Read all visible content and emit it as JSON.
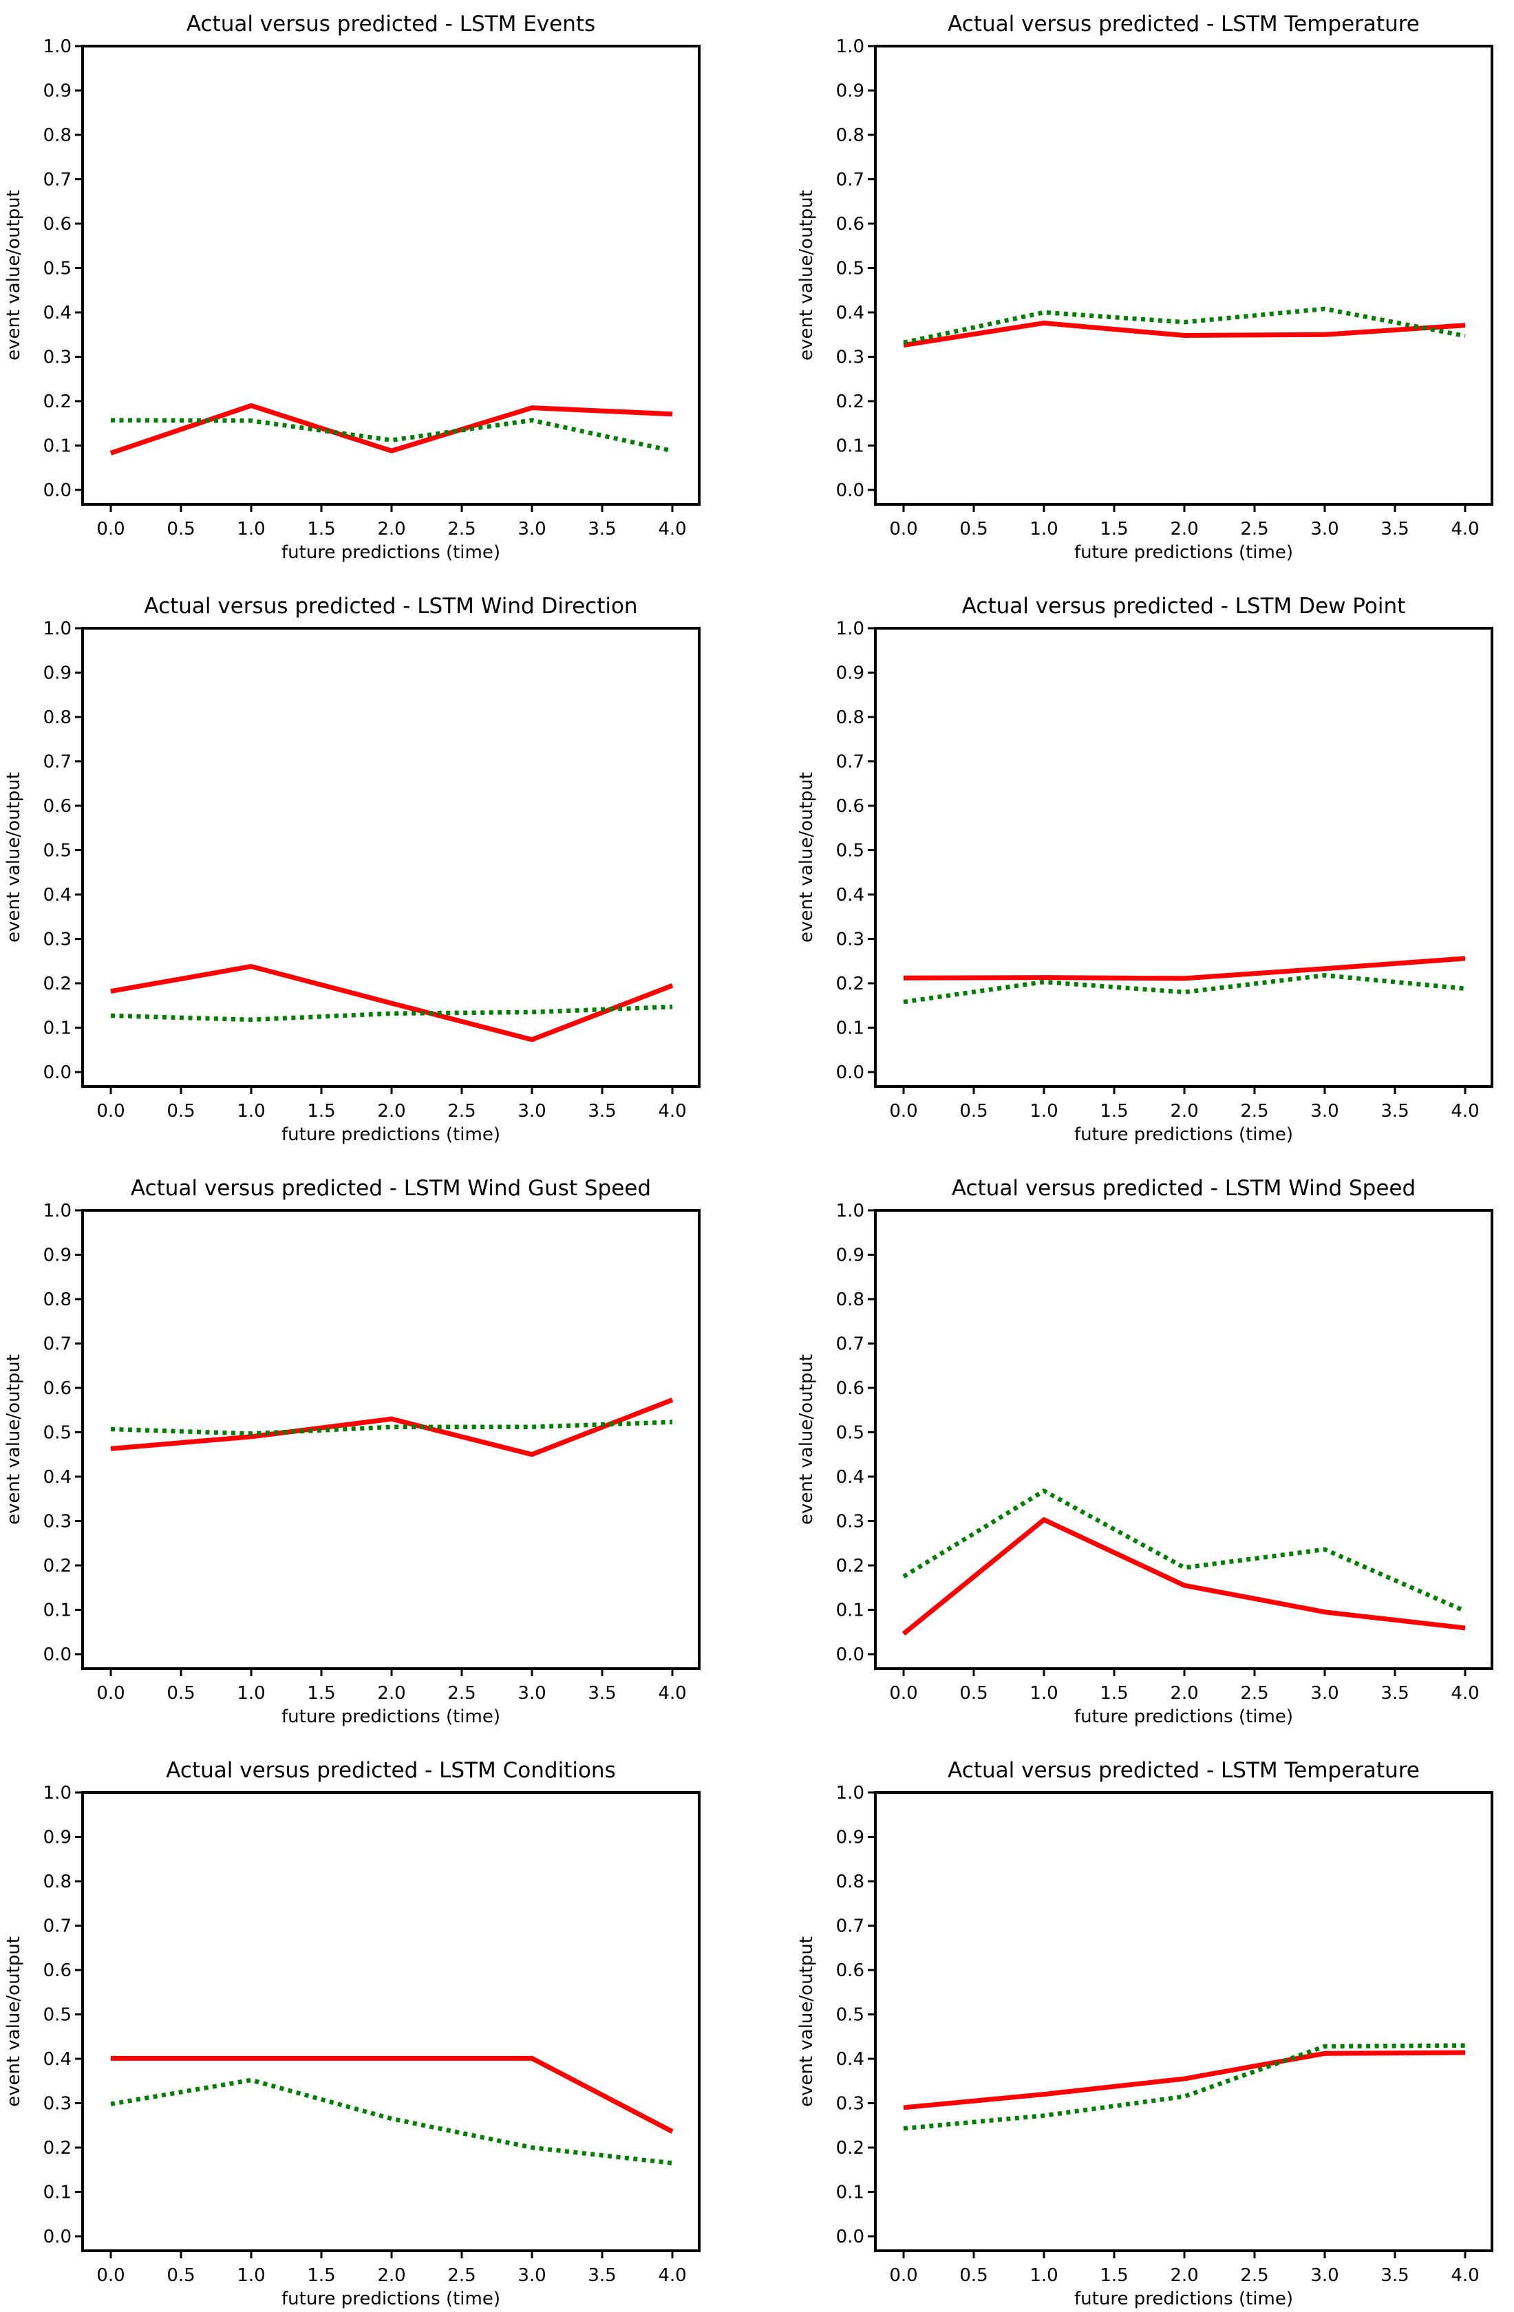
{
  "figure": {
    "background": "#ffffff",
    "grid": "4 rows x 2 columns of line subplots"
  },
  "chart_data": [
    {
      "type": "line",
      "title": "Actual versus predicted - LSTM Events",
      "xlabel": "future predictions (time)",
      "ylabel": "event value/output",
      "x": [
        0,
        1,
        2,
        3,
        4
      ],
      "xlim": [
        -0.2,
        4.2
      ],
      "ylim": [
        -0.034,
        1.0
      ],
      "grid": false,
      "legend_position": "none",
      "xtick_labels": [
        "0.0",
        "0.5",
        "1.0",
        "1.5",
        "2.0",
        "2.5",
        "3.0",
        "3.5",
        "4.0"
      ],
      "ytick_labels": [
        "0.0",
        "0.1",
        "0.2",
        "0.3",
        "0.4",
        "0.5",
        "0.6",
        "0.7",
        "0.8",
        "0.9",
        "1.0"
      ],
      "series": [
        {
          "name": "actual",
          "color": "#ff0000",
          "style": "solid",
          "values": [
            0.083,
            0.19,
            0.088,
            0.185,
            0.171
          ]
        },
        {
          "name": "predicted",
          "color": "#008000",
          "style": "dotted",
          "values": [
            0.157,
            0.156,
            0.112,
            0.157,
            0.088
          ]
        }
      ]
    },
    {
      "type": "line",
      "title": "Actual versus predicted - LSTM Temperature",
      "xlabel": "future predictions (time)",
      "ylabel": "event value/output",
      "x": [
        0,
        1,
        2,
        3,
        4
      ],
      "xlim": [
        -0.2,
        4.2
      ],
      "ylim": [
        -0.034,
        1.0
      ],
      "grid": false,
      "legend_position": "none",
      "xtick_labels": [
        "0.0",
        "0.5",
        "1.0",
        "1.5",
        "2.0",
        "2.5",
        "3.0",
        "3.5",
        "4.0"
      ],
      "ytick_labels": [
        "0.0",
        "0.1",
        "0.2",
        "0.3",
        "0.4",
        "0.5",
        "0.6",
        "0.7",
        "0.8",
        "0.9",
        "1.0"
      ],
      "series": [
        {
          "name": "actual",
          "color": "#ff0000",
          "style": "solid",
          "values": [
            0.326,
            0.376,
            0.348,
            0.35,
            0.371
          ]
        },
        {
          "name": "predicted",
          "color": "#008000",
          "style": "dotted",
          "values": [
            0.332,
            0.4,
            0.378,
            0.408,
            0.347
          ]
        }
      ]
    },
    {
      "type": "line",
      "title": "Actual versus predicted - LSTM Wind Direction",
      "xlabel": "future predictions (time)",
      "ylabel": "event value/output",
      "x": [
        0,
        1,
        2,
        3,
        4
      ],
      "xlim": [
        -0.2,
        4.2
      ],
      "ylim": [
        -0.034,
        1.0
      ],
      "grid": false,
      "legend_position": "none",
      "xtick_labels": [
        "0.0",
        "0.5",
        "1.0",
        "1.5",
        "2.0",
        "2.5",
        "3.0",
        "3.5",
        "4.0"
      ],
      "ytick_labels": [
        "0.0",
        "0.1",
        "0.2",
        "0.3",
        "0.4",
        "0.5",
        "0.6",
        "0.7",
        "0.8",
        "0.9",
        "1.0"
      ],
      "series": [
        {
          "name": "actual",
          "color": "#ff0000",
          "style": "solid",
          "values": [
            0.182,
            0.238,
            0.155,
            0.073,
            0.195
          ]
        },
        {
          "name": "predicted",
          "color": "#008000",
          "style": "dotted",
          "values": [
            0.127,
            0.118,
            0.132,
            0.135,
            0.147
          ]
        }
      ]
    },
    {
      "type": "line",
      "title": "Actual versus predicted - LSTM Dew Point",
      "xlabel": "future predictions (time)",
      "ylabel": "event value/output",
      "x": [
        0,
        1,
        2,
        3,
        4
      ],
      "xlim": [
        -0.2,
        4.2
      ],
      "ylim": [
        -0.034,
        1.0
      ],
      "grid": false,
      "legend_position": "none",
      "xtick_labels": [
        "0.0",
        "0.5",
        "1.0",
        "1.5",
        "2.0",
        "2.5",
        "3.0",
        "3.5",
        "4.0"
      ],
      "ytick_labels": [
        "0.0",
        "0.1",
        "0.2",
        "0.3",
        "0.4",
        "0.5",
        "0.6",
        "0.7",
        "0.8",
        "0.9",
        "1.0"
      ],
      "series": [
        {
          "name": "actual",
          "color": "#ff0000",
          "style": "solid",
          "values": [
            0.212,
            0.213,
            0.211,
            0.233,
            0.256
          ]
        },
        {
          "name": "predicted",
          "color": "#008000",
          "style": "dotted",
          "values": [
            0.158,
            0.203,
            0.18,
            0.218,
            0.188
          ]
        }
      ]
    },
    {
      "type": "line",
      "title": "Actual versus predicted - LSTM Wind Gust Speed",
      "xlabel": "future predictions (time)",
      "ylabel": "event value/output",
      "x": [
        0,
        1,
        2,
        3,
        4
      ],
      "xlim": [
        -0.2,
        4.2
      ],
      "ylim": [
        -0.034,
        1.0
      ],
      "grid": false,
      "legend_position": "none",
      "xtick_labels": [
        "0.0",
        "0.5",
        "1.0",
        "1.5",
        "2.0",
        "2.5",
        "3.0",
        "3.5",
        "4.0"
      ],
      "ytick_labels": [
        "0.0",
        "0.1",
        "0.2",
        "0.3",
        "0.4",
        "0.5",
        "0.6",
        "0.7",
        "0.8",
        "0.9",
        "1.0"
      ],
      "series": [
        {
          "name": "actual",
          "color": "#ff0000",
          "style": "solid",
          "values": [
            0.463,
            0.49,
            0.53,
            0.45,
            0.573
          ]
        },
        {
          "name": "predicted",
          "color": "#008000",
          "style": "dotted",
          "values": [
            0.507,
            0.497,
            0.512,
            0.512,
            0.523
          ]
        }
      ]
    },
    {
      "type": "line",
      "title": "Actual versus predicted - LSTM Wind Speed",
      "xlabel": "future predictions (time)",
      "ylabel": "event value/output",
      "x": [
        0,
        1,
        2,
        3,
        4
      ],
      "xlim": [
        -0.2,
        4.2
      ],
      "ylim": [
        -0.034,
        1.0
      ],
      "grid": false,
      "legend_position": "none",
      "xtick_labels": [
        "0.0",
        "0.5",
        "1.0",
        "1.5",
        "2.0",
        "2.5",
        "3.0",
        "3.5",
        "4.0"
      ],
      "ytick_labels": [
        "0.0",
        "0.1",
        "0.2",
        "0.3",
        "0.4",
        "0.5",
        "0.6",
        "0.7",
        "0.8",
        "0.9",
        "1.0"
      ],
      "series": [
        {
          "name": "actual",
          "color": "#ff0000",
          "style": "solid",
          "values": [
            0.046,
            0.303,
            0.155,
            0.095,
            0.059
          ]
        },
        {
          "name": "predicted",
          "color": "#008000",
          "style": "dotted",
          "values": [
            0.175,
            0.368,
            0.195,
            0.236,
            0.097
          ]
        }
      ]
    },
    {
      "type": "line",
      "title": "Actual versus predicted - LSTM Conditions",
      "xlabel": "future predictions (time)",
      "ylabel": "event value/output",
      "x": [
        0,
        1,
        2,
        3,
        4
      ],
      "xlim": [
        -0.2,
        4.2
      ],
      "ylim": [
        -0.034,
        1.0
      ],
      "grid": false,
      "legend_position": "none",
      "xtick_labels": [
        "0.0",
        "0.5",
        "1.0",
        "1.5",
        "2.0",
        "2.5",
        "3.0",
        "3.5",
        "4.0"
      ],
      "ytick_labels": [
        "0.0",
        "0.1",
        "0.2",
        "0.3",
        "0.4",
        "0.5",
        "0.6",
        "0.7",
        "0.8",
        "0.9",
        "1.0"
      ],
      "series": [
        {
          "name": "actual",
          "color": "#ff0000",
          "style": "solid",
          "values": [
            0.401,
            0.401,
            0.401,
            0.401,
            0.236
          ]
        },
        {
          "name": "predicted",
          "color": "#008000",
          "style": "dotted",
          "values": [
            0.298,
            0.352,
            0.265,
            0.2,
            0.165
          ]
        }
      ]
    },
    {
      "type": "line",
      "title": "Actual versus predicted - LSTM Temperature",
      "xlabel": "future predictions (time)",
      "ylabel": "event value/output",
      "x": [
        0,
        1,
        2,
        3,
        4
      ],
      "xlim": [
        -0.2,
        4.2
      ],
      "ylim": [
        -0.034,
        1.0
      ],
      "grid": false,
      "legend_position": "none",
      "xtick_labels": [
        "0.0",
        "0.5",
        "1.0",
        "1.5",
        "2.0",
        "2.5",
        "3.0",
        "3.5",
        "4.0"
      ],
      "ytick_labels": [
        "0.0",
        "0.1",
        "0.2",
        "0.3",
        "0.4",
        "0.5",
        "0.6",
        "0.7",
        "0.8",
        "0.9",
        "1.0"
      ],
      "series": [
        {
          "name": "actual",
          "color": "#ff0000",
          "style": "solid",
          "values": [
            0.29,
            0.32,
            0.355,
            0.412,
            0.414
          ]
        },
        {
          "name": "predicted",
          "color": "#008000",
          "style": "dotted",
          "values": [
            0.243,
            0.272,
            0.315,
            0.428,
            0.43
          ]
        }
      ]
    }
  ]
}
